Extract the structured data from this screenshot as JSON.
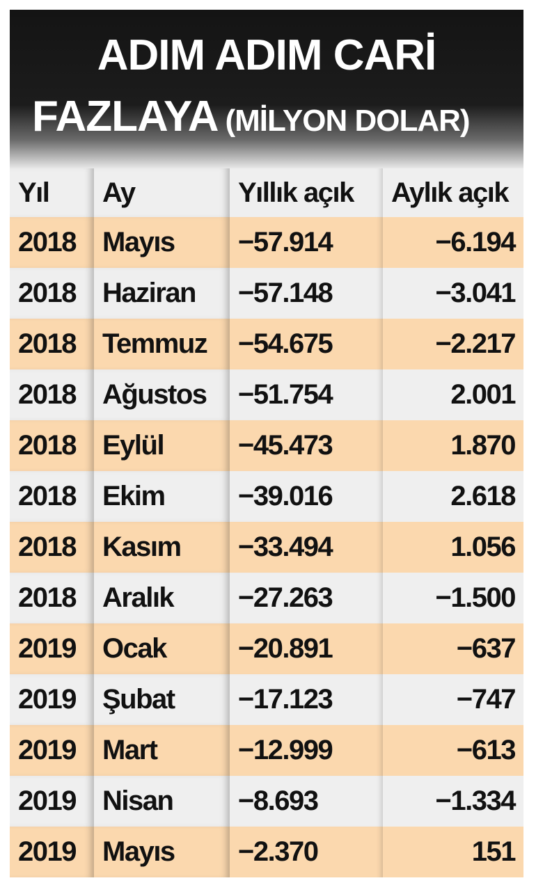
{
  "header": {
    "title_line1": "ADIM ADIM CARİ",
    "title_line2": "FAZLAYA",
    "subtitle": "(MİLYON DOLAR)"
  },
  "table": {
    "headers": [
      "Yıl",
      "Ay",
      "Yıllık açık",
      "Aylık açık"
    ],
    "rows": [
      [
        "2018",
        "Mayıs",
        "−57.914",
        "−6.194"
      ],
      [
        "2018",
        "Haziran",
        "−57.148",
        "−3.041"
      ],
      [
        "2018",
        "Temmuz",
        "−54.675",
        "−2.217"
      ],
      [
        "2018",
        "Ağustos",
        "−51.754",
        "2.001"
      ],
      [
        "2018",
        "Eylül",
        "−45.473",
        "1.870"
      ],
      [
        "2018",
        "Ekim",
        "−39.016",
        "2.618"
      ],
      [
        "2018",
        "Kasım",
        "−33.494",
        "1.056"
      ],
      [
        "2018",
        "Aralık",
        "−27.263",
        "−1.500"
      ],
      [
        "2019",
        "Ocak",
        "−20.891",
        "−637"
      ],
      [
        "2019",
        "Şubat",
        "−17.123",
        "−747"
      ],
      [
        "2019",
        "Mart",
        "−12.999",
        "−613"
      ],
      [
        "2019",
        "Nisan",
        "−8.693",
        "−1.334"
      ],
      [
        "2019",
        "Mayıs",
        "−2.370",
        "151"
      ]
    ]
  }
}
